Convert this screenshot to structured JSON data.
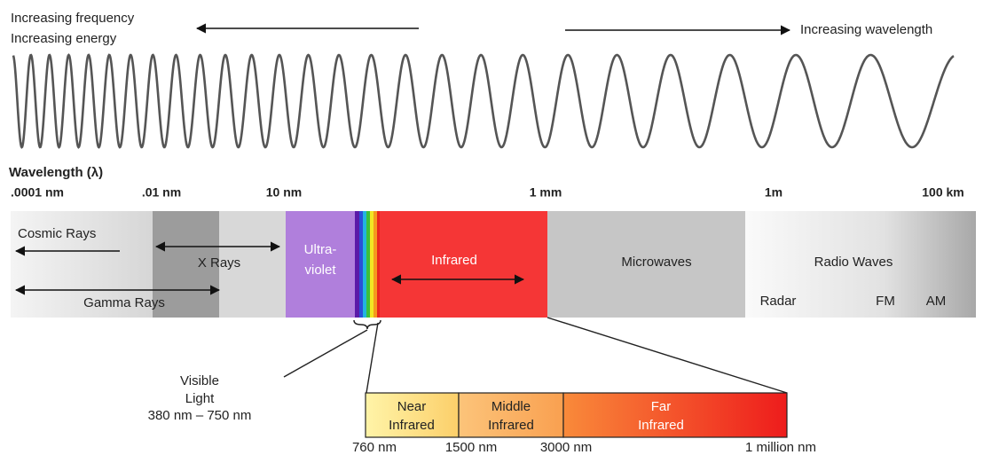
{
  "header": {
    "left_lines": [
      "Increasing frequency",
      "Increasing energy"
    ],
    "right": "Increasing wavelength"
  },
  "scale": {
    "title": "Wavelength (λ)",
    "labels": [
      ".0001 nm",
      ".01 nm",
      "10 nm",
      "1 mm",
      "1m",
      "100 km"
    ]
  },
  "bands": {
    "cosmic": "Cosmic Rays",
    "xrays": "X Rays",
    "gamma": "Gamma Rays",
    "ultraviolet": [
      "Ultra-",
      "violet"
    ],
    "infrared": "Infrared",
    "microwaves": "Microwaves",
    "radio": "Radio Waves",
    "radio_uses": [
      "Radar",
      "FM",
      "AM"
    ]
  },
  "visible": {
    "lines": [
      "Visible",
      "Light",
      "380 nm – 750 nm"
    ]
  },
  "infrared_detail": {
    "regions": [
      [
        "Near",
        "Infrared"
      ],
      [
        "Middle",
        "Infrared"
      ],
      [
        "Far",
        "Infrared"
      ]
    ],
    "boundaries": [
      "760 nm",
      "1500 nm",
      "3000 nm",
      "1 million nm"
    ]
  }
}
